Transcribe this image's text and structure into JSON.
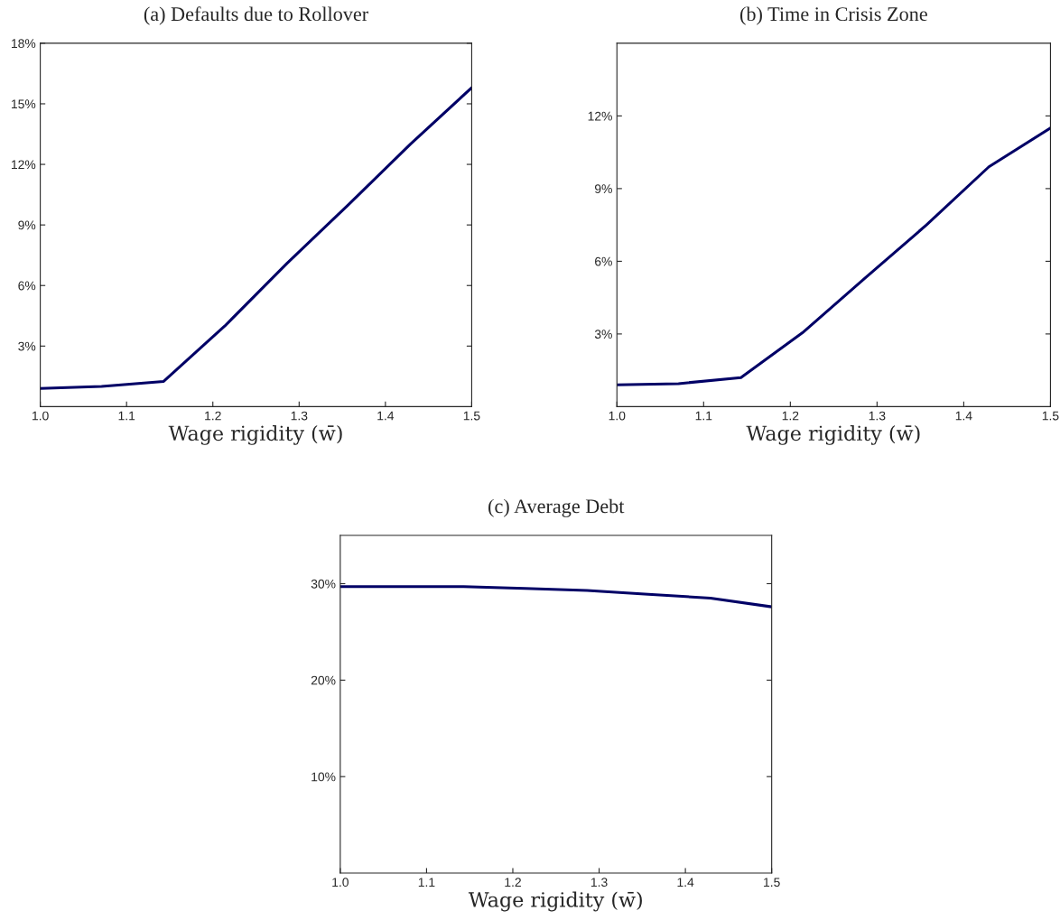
{
  "chart_data": [
    {
      "type": "line",
      "title": "(a) Defaults due to Rollover",
      "xlabel": "Wage rigidity (w̄)",
      "grid": false,
      "legend": false,
      "x": [
        1.0,
        1.071,
        1.143,
        1.214,
        1.286,
        1.357,
        1.429,
        1.5
      ],
      "series": [
        {
          "color": "#000066",
          "values": [
            0.9,
            1.0,
            1.25,
            4.0,
            7.1,
            10.0,
            13.0,
            15.8
          ]
        }
      ],
      "xlim": [
        1.0,
        1.5
      ],
      "xticks": [
        {
          "value": 1.0,
          "label": "1.0"
        },
        {
          "value": 1.1,
          "label": "1.1"
        },
        {
          "value": 1.2,
          "label": "1.2"
        },
        {
          "value": 1.3,
          "label": "1.3"
        },
        {
          "value": 1.4,
          "label": "1.4"
        },
        {
          "value": 1.5,
          "label": "1.5"
        }
      ],
      "ylim": [
        0,
        18
      ],
      "yticks": [
        {
          "value": 3,
          "label": "3%"
        },
        {
          "value": 6,
          "label": "6%"
        },
        {
          "value": 9,
          "label": "9%"
        },
        {
          "value": 12,
          "label": "12%"
        },
        {
          "value": 15,
          "label": "15%"
        },
        {
          "value": 18,
          "label": "18%"
        }
      ]
    },
    {
      "type": "line",
      "title": "(b) Time in Crisis Zone",
      "xlabel": "Wage rigidity (w̄)",
      "grid": false,
      "legend": false,
      "x": [
        1.0,
        1.071,
        1.143,
        1.214,
        1.286,
        1.357,
        1.429,
        1.5
      ],
      "series": [
        {
          "color": "#000066",
          "values": [
            0.9,
            0.95,
            1.2,
            3.05,
            5.3,
            7.5,
            9.9,
            11.5
          ]
        }
      ],
      "xlim": [
        1.0,
        1.5
      ],
      "xticks": [
        {
          "value": 1.0,
          "label": "1.0"
        },
        {
          "value": 1.1,
          "label": "1.1"
        },
        {
          "value": 1.2,
          "label": "1.2"
        },
        {
          "value": 1.3,
          "label": "1.3"
        },
        {
          "value": 1.4,
          "label": "1.4"
        },
        {
          "value": 1.5,
          "label": "1.5"
        }
      ],
      "ylim": [
        0,
        15
      ],
      "yticks": [
        {
          "value": 3,
          "label": "3%"
        },
        {
          "value": 6,
          "label": "6%"
        },
        {
          "value": 9,
          "label": "9%"
        },
        {
          "value": 12,
          "label": "12%"
        }
      ]
    },
    {
      "type": "line",
      "title": "(c) Average Debt",
      "xlabel": "Wage rigidity (w̄)",
      "grid": false,
      "legend": false,
      "x": [
        1.0,
        1.071,
        1.143,
        1.214,
        1.286,
        1.357,
        1.429,
        1.5
      ],
      "series": [
        {
          "color": "#000066",
          "values": [
            29.7,
            29.7,
            29.7,
            29.5,
            29.3,
            28.9,
            28.5,
            27.6
          ]
        }
      ],
      "xlim": [
        1.0,
        1.5
      ],
      "xticks": [
        {
          "value": 1.0,
          "label": "1.0"
        },
        {
          "value": 1.1,
          "label": "1.1"
        },
        {
          "value": 1.2,
          "label": "1.2"
        },
        {
          "value": 1.3,
          "label": "1.3"
        },
        {
          "value": 1.4,
          "label": "1.4"
        },
        {
          "value": 1.5,
          "label": "1.5"
        }
      ],
      "ylim": [
        0,
        35
      ],
      "yticks": [
        {
          "value": 10,
          "label": "10%"
        },
        {
          "value": 20,
          "label": "20%"
        },
        {
          "value": 30,
          "label": "30%"
        }
      ]
    }
  ]
}
